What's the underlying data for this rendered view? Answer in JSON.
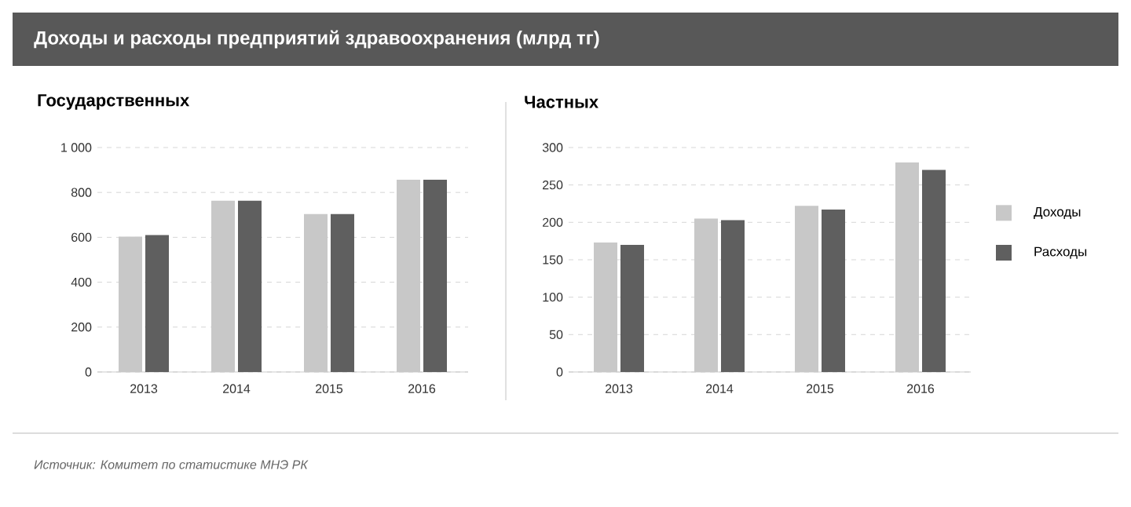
{
  "chart_data": [
    {
      "type": "bar",
      "title": "Доходы и расходы предприятий здравоохранения (млрд тг)",
      "subtitle": "Государственных",
      "categories": [
        "2013",
        "2014",
        "2015",
        "2016"
      ],
      "series": [
        {
          "color": "#c8c8c8",
          "values": [
            603,
            763,
            704,
            857
          ]
        },
        {
          "color": "#5f5f5f",
          "values": [
            610,
            763,
            704,
            857
          ]
        }
      ],
      "ylim": [
        0,
        1000
      ],
      "yticks": [
        0,
        200,
        400,
        600,
        800,
        {
          "value": 1000,
          "label": "1 000"
        }
      ],
      "grid": "y",
      "legend": false,
      "annotations": [
        "Источник:  Комитет по статистике МНЭ РК"
      ]
    },
    {
      "type": "bar",
      "title": "Частных",
      "categories": [
        "2013",
        "2014",
        "2015",
        "2016"
      ],
      "series": [
        {
          "name": "Доходы",
          "color": "#c8c8c8",
          "values": [
            173,
            205,
            222,
            280
          ]
        },
        {
          "name": "Расходы",
          "color": "#5f5f5f",
          "values": [
            170,
            203,
            217,
            270
          ]
        }
      ],
      "ylim": [
        0,
        300
      ],
      "yticks": [
        0,
        50,
        100,
        150,
        200,
        250,
        300
      ],
      "grid": "y",
      "legend": "right"
    }
  ]
}
